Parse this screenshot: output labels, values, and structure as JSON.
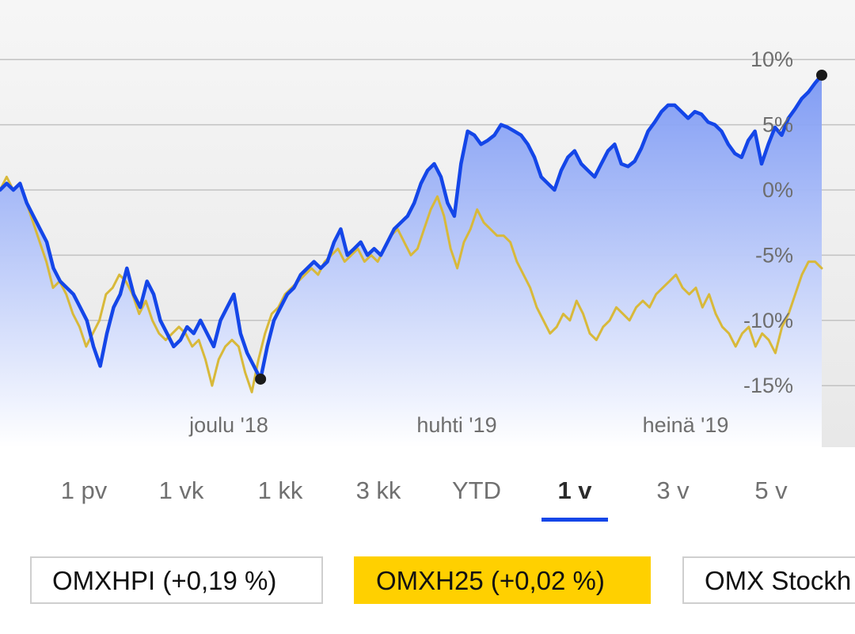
{
  "chart_data": {
    "type": "line",
    "y_unit": "%",
    "yticks": [
      "10%",
      "5%",
      "0%",
      "-5%",
      "-10%",
      "-15%"
    ],
    "ytick_values": [
      10,
      5,
      0,
      -5,
      -10,
      -15
    ],
    "xticks": [
      "joulu '18",
      "huhti '19",
      "heinä '19"
    ],
    "ylim": [
      -19,
      14
    ],
    "grid": true,
    "area_fill_series": 0,
    "series": [
      {
        "name": "OMXHPI",
        "color": "#1446e8",
        "values": [
          0,
          0.5,
          0,
          0.5,
          -1,
          -2,
          -3,
          -4,
          -6,
          -7,
          -7.5,
          -8,
          -9,
          -10,
          -12,
          -13.5,
          -11,
          -9,
          -8,
          -6,
          -8,
          -9,
          -7,
          -8,
          -10,
          -11,
          -12,
          -11.5,
          -10.5,
          -11,
          -10,
          -11,
          -12,
          -10,
          -9,
          -8,
          -11,
          -12.5,
          -13.5,
          -14.5,
          -12,
          -10,
          -9,
          -8,
          -7.5,
          -6.5,
          -6,
          -5.5,
          -6,
          -5.5,
          -4,
          -3,
          -5,
          -4.5,
          -4,
          -5,
          -4.5,
          -5,
          -4,
          -3,
          -2.5,
          -2,
          -1,
          0.5,
          1.5,
          2,
          1,
          -1,
          -2,
          2,
          4.5,
          4.2,
          3.5,
          3.8,
          4.2,
          5,
          4.8,
          4.5,
          4.2,
          3.5,
          2.5,
          1,
          0.5,
          0,
          1.5,
          2.5,
          3,
          2,
          1.5,
          1,
          2,
          3,
          3.5,
          2,
          1.8,
          2.2,
          3.2,
          4.5,
          5.2,
          6,
          6.5,
          6.5,
          6,
          5.5,
          6,
          5.8,
          5.2,
          5,
          4.5,
          3.5,
          2.8,
          2.5,
          3.8,
          4.5,
          2,
          3.5,
          4.8,
          4.2,
          5.5,
          6.2,
          7,
          7.5,
          8.2,
          8.8
        ],
        "start_marker": null,
        "min_marker_value": -14.5,
        "end_marker_value": 8.8
      },
      {
        "name": "OMXH25",
        "color": "#d8b93a",
        "values": [
          0,
          1,
          0,
          0.5,
          -1,
          -2.5,
          -4,
          -5.5,
          -7.5,
          -7,
          -8,
          -9.5,
          -10.5,
          -12,
          -11,
          -10,
          -8,
          -7.5,
          -6.5,
          -7,
          -8,
          -9.5,
          -8.5,
          -10,
          -11,
          -11.5,
          -11,
          -10.5,
          -11,
          -12,
          -11.5,
          -13,
          -15,
          -13,
          -12,
          -11.5,
          -12,
          -14,
          -15.5,
          -13,
          -11,
          -9.5,
          -9,
          -8,
          -7.5,
          -7,
          -6.5,
          -6,
          -6.5,
          -5.5,
          -5,
          -4.5,
          -5.5,
          -5,
          -4.5,
          -5.5,
          -5,
          -5.5,
          -4.5,
          -3.5,
          -3,
          -4,
          -5,
          -4.5,
          -3,
          -1.5,
          -0.5,
          -2,
          -4.5,
          -6,
          -4,
          -3,
          -1.5,
          -2.5,
          -3,
          -3.5,
          -3.5,
          -4,
          -5.5,
          -6.5,
          -7.5,
          -9,
          -10,
          -11,
          -10.5,
          -9.5,
          -10,
          -8.5,
          -9.5,
          -11,
          -11.5,
          -10.5,
          -10,
          -9,
          -9.5,
          -10,
          -9,
          -8.5,
          -9,
          -8,
          -7.5,
          -7,
          -6.5,
          -7.5,
          -8,
          -7.5,
          -9,
          -8,
          -9.5,
          -10.5,
          -11,
          -12,
          -11,
          -10.5,
          -12,
          -11,
          -11.5,
          -12.5,
          -10.5,
          -9.5,
          -8,
          -6.5,
          -5.5,
          -5.5,
          -6
        ]
      }
    ]
  },
  "tabs": {
    "items": [
      {
        "label": "1 pv",
        "active": false
      },
      {
        "label": "1 vk",
        "active": false
      },
      {
        "label": "1 kk",
        "active": false
      },
      {
        "label": "3 kk",
        "active": false
      },
      {
        "label": "YTD",
        "active": false
      },
      {
        "label": "1 v",
        "active": true
      },
      {
        "label": "3 v",
        "active": false
      },
      {
        "label": "5 v",
        "active": false
      }
    ],
    "active_color": "#1446e8"
  },
  "indices": {
    "omxhpi": "OMXHPI (+0,19 %)",
    "omxh25": "OMXH25 (+0,02 %)",
    "stockholm": "OMX Stockh",
    "selected_color": "#ffd000"
  }
}
